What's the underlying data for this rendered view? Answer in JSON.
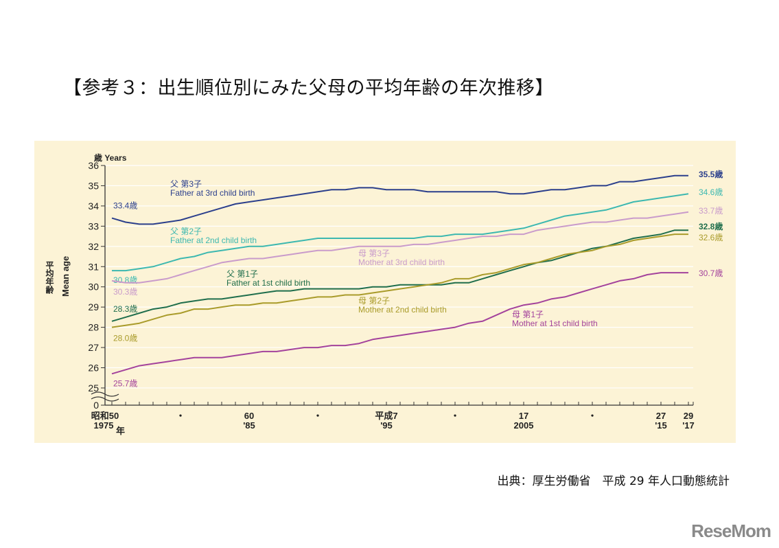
{
  "title": "【参考３：出生順位別にみた父母の平均年齢の年次推移】",
  "source": "出典：厚生労働省　平成 29 年人口動態統計",
  "logo": "ReseMom",
  "chart_data": {
    "type": "line",
    "title": "出生順位別にみた父母の平均年齢の年次推移",
    "y_unit_label": "歳 Years",
    "ylabel_jp": "平均年齢",
    "ylabel": "Mean age",
    "ylim": [
      25,
      36
    ],
    "y_break": true,
    "yticks": [
      0,
      25,
      26,
      27,
      28,
      29,
      30,
      31,
      32,
      33,
      34,
      35,
      36
    ],
    "x": [
      1975,
      1976,
      1977,
      1978,
      1979,
      1980,
      1981,
      1982,
      1983,
      1984,
      1985,
      1986,
      1987,
      1988,
      1989,
      1990,
      1991,
      1992,
      1993,
      1994,
      1995,
      1996,
      1997,
      1998,
      1999,
      2000,
      2001,
      2002,
      2003,
      2004,
      2005,
      2006,
      2007,
      2008,
      2009,
      2010,
      2011,
      2012,
      2013,
      2014,
      2015,
      2016,
      2017
    ],
    "xtick_labels": [
      {
        "year": 1975,
        "era": "昭和50",
        "western": "1975",
        "suffix": "年"
      },
      {
        "year": 1980,
        "era": "・",
        "western": ""
      },
      {
        "year": 1985,
        "era": "60",
        "western": "'85"
      },
      {
        "year": 1990,
        "era": "・",
        "western": ""
      },
      {
        "year": 1995,
        "era": "平成7",
        "western": "'95"
      },
      {
        "year": 2000,
        "era": "・",
        "western": ""
      },
      {
        "year": 2005,
        "era": "17",
        "western": "2005"
      },
      {
        "year": 2010,
        "era": "・",
        "western": ""
      },
      {
        "year": 2015,
        "era": "27",
        "western": "'15"
      },
      {
        "year": 2017,
        "era": "29",
        "western": "'17"
      }
    ],
    "grid": true,
    "series": [
      {
        "name_jp": "父 第3子",
        "name": "Father at 3rd child birth",
        "color": "#2b3f8c",
        "start_label": "33.4歳",
        "end_label": "35.5歳",
        "values": [
          33.4,
          33.2,
          33.1,
          33.1,
          33.2,
          33.3,
          33.5,
          33.7,
          33.9,
          34.1,
          34.2,
          34.3,
          34.4,
          34.5,
          34.6,
          34.7,
          34.8,
          34.8,
          34.9,
          34.9,
          34.8,
          34.8,
          34.8,
          34.7,
          34.7,
          34.7,
          34.7,
          34.7,
          34.7,
          34.6,
          34.6,
          34.7,
          34.8,
          34.8,
          34.9,
          35.0,
          35.0,
          35.2,
          35.2,
          35.3,
          35.4,
          35.5,
          35.5
        ]
      },
      {
        "name_jp": "父 第2子",
        "name": "Father at 2nd child birth",
        "color": "#3cb8b0",
        "start_label": "30.8歳",
        "end_label": "34.6歳",
        "values": [
          30.8,
          30.8,
          30.9,
          31.0,
          31.2,
          31.4,
          31.5,
          31.7,
          31.8,
          31.9,
          32.0,
          32.0,
          32.1,
          32.2,
          32.3,
          32.4,
          32.4,
          32.4,
          32.4,
          32.4,
          32.4,
          32.4,
          32.4,
          32.5,
          32.5,
          32.6,
          32.6,
          32.6,
          32.7,
          32.8,
          32.9,
          33.1,
          33.3,
          33.5,
          33.6,
          33.7,
          33.8,
          34.0,
          34.2,
          34.3,
          34.4,
          34.5,
          34.6
        ]
      },
      {
        "name_jp": "母 第3子",
        "name": "Mother at 3rd child birth",
        "color": "#c99bcb",
        "start_label": "30.3歳",
        "end_label": "33.7歳",
        "values": [
          30.3,
          30.2,
          30.2,
          30.3,
          30.4,
          30.6,
          30.8,
          31.0,
          31.2,
          31.3,
          31.4,
          31.4,
          31.5,
          31.6,
          31.7,
          31.8,
          31.8,
          31.9,
          32.0,
          32.0,
          32.0,
          32.0,
          32.1,
          32.1,
          32.2,
          32.3,
          32.4,
          32.5,
          32.5,
          32.6,
          32.6,
          32.8,
          32.9,
          33.0,
          33.1,
          33.2,
          33.2,
          33.3,
          33.4,
          33.4,
          33.5,
          33.6,
          33.7
        ]
      },
      {
        "name_jp": "父 第1子",
        "name": "Father at 1st child birth",
        "color": "#1f6e4c",
        "start_label": "28.3歳",
        "end_label": "32.8歳",
        "values": [
          28.3,
          28.5,
          28.7,
          28.9,
          29.0,
          29.2,
          29.3,
          29.4,
          29.4,
          29.5,
          29.6,
          29.7,
          29.8,
          29.8,
          29.9,
          29.9,
          29.9,
          29.9,
          29.9,
          30.0,
          30.0,
          30.1,
          30.1,
          30.1,
          30.1,
          30.2,
          30.2,
          30.4,
          30.6,
          30.8,
          31.0,
          31.2,
          31.3,
          31.5,
          31.7,
          31.9,
          32.0,
          32.2,
          32.4,
          32.5,
          32.6,
          32.8,
          32.8
        ]
      },
      {
        "name_jp": "母 第2子",
        "name": "Mother at 2nd child birth",
        "color": "#a99b2a",
        "start_label": "28.0歳",
        "end_label": "32.6歳",
        "values": [
          28.0,
          28.1,
          28.2,
          28.4,
          28.6,
          28.7,
          28.9,
          28.9,
          29.0,
          29.1,
          29.1,
          29.2,
          29.2,
          29.3,
          29.4,
          29.5,
          29.5,
          29.6,
          29.6,
          29.7,
          29.8,
          29.9,
          30.0,
          30.1,
          30.2,
          30.4,
          30.4,
          30.6,
          30.7,
          30.9,
          31.1,
          31.2,
          31.4,
          31.6,
          31.7,
          31.8,
          32.0,
          32.1,
          32.3,
          32.4,
          32.5,
          32.6,
          32.6
        ]
      },
      {
        "name_jp": "母 第1子",
        "name": "Mother at 1st child birth",
        "color": "#a3429c",
        "start_label": "25.7歳",
        "end_label": "30.7歳",
        "values": [
          25.7,
          25.9,
          26.1,
          26.2,
          26.3,
          26.4,
          26.5,
          26.5,
          26.5,
          26.6,
          26.7,
          26.8,
          26.8,
          26.9,
          27.0,
          27.0,
          27.1,
          27.1,
          27.2,
          27.4,
          27.5,
          27.6,
          27.7,
          27.8,
          27.9,
          28.0,
          28.2,
          28.3,
          28.6,
          28.9,
          29.1,
          29.2,
          29.4,
          29.5,
          29.7,
          29.9,
          30.1,
          30.3,
          30.4,
          30.6,
          30.7,
          30.7,
          30.7
        ]
      }
    ]
  }
}
